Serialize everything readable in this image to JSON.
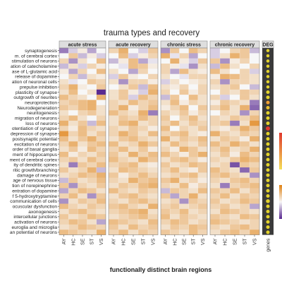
{
  "chart_data": {
    "type": "heatmap",
    "title": "trauma types and recovery",
    "xlabel": "functionally distinct brain regions",
    "panels": [
      "acute stress",
      "acute recovery",
      "chronic stress",
      "chronic recovery",
      "DEG"
    ],
    "region_labels": [
      "AY",
      "HC",
      "SE",
      "ST",
      "VS"
    ],
    "deg_xlabel": "genes",
    "row_labels": [
      "synaptogenesis",
      "m. of cerebral cortex",
      "stimulation of neurons",
      "ation of catecholamine",
      "ase of L-glutamic acid",
      "release of dopamine",
      "ation of neuronal cells",
      "prepulse inhibition",
      "plasticity of synapse",
      "outgrowth of neurites",
      "neuroprotection",
      "Neurodegeneration",
      "neuritogenesis",
      "migration of neurons",
      "loss of neurons",
      "otentiation of synapse",
      "depression of synapse",
      "postsynaptic potential",
      "excitation of neurons",
      "order of basal ganglia",
      "ment of hippocampus",
      "ment of cerebral cortex",
      "ity of dendritic spines",
      "ritic growth/branching",
      "damage of neurons",
      "age of nervous tissue",
      "tion of norepinephrine",
      "entration of dopamine",
      "f 5-hydroxytryptamine",
      "communication of cells",
      "ocuscular dysfunction",
      "axonogenesis",
      "intercellular junctions",
      "activation of neurons",
      "euroglia and microglia",
      "an potential of neurons"
    ],
    "values": [
      [
        -0.6,
        -0.2,
        0.1,
        -0.4,
        0.0,
        0.3,
        0.6,
        0.0,
        -0.2,
        0.4,
        -0.5,
        0.4,
        0.0,
        0.5,
        0.3,
        -0.2,
        0.0,
        0.3,
        0.4,
        -0.3
      ],
      [
        0.0,
        0.4,
        -0.3,
        0.1,
        -0.2,
        0.0,
        0.5,
        -0.2,
        0.1,
        0.3,
        0.6,
        -0.1,
        0.3,
        -0.4,
        0.0,
        -0.2,
        0.2,
        0.6,
        0.4,
        0.0
      ],
      [
        0.3,
        -0.5,
        0.2,
        0.0,
        0.5,
        -0.3,
        0.1,
        0.5,
        -0.4,
        -0.1,
        0.0,
        0.6,
        0.1,
        -0.2,
        0.4,
        0.4,
        -0.5,
        0.1,
        0.3,
        0.0
      ],
      [
        -0.3,
        0.2,
        -0.2,
        0.3,
        0.1,
        0.0,
        -0.1,
        0.5,
        0.4,
        0.1,
        0.3,
        0.1,
        -0.1,
        -0.5,
        0.2,
        -0.3,
        0.5,
        0.2,
        0.0,
        0.3
      ],
      [
        0.1,
        -0.4,
        0.3,
        0.0,
        0.5,
        0.2,
        0.0,
        -0.4,
        0.3,
        0.0,
        0.3,
        -0.4,
        0.5,
        0.2,
        0.1,
        0.5,
        0.2,
        0.0,
        0.3,
        -0.2
      ],
      [
        0.0,
        0.3,
        -0.3,
        0.2,
        0.1,
        -0.2,
        0.4,
        0.1,
        0.0,
        0.3,
        0.2,
        0.0,
        -0.1,
        0.3,
        0.3,
        0.1,
        0.6,
        0.5,
        0.3,
        0.2
      ],
      [
        0.2,
        -0.1,
        0.0,
        0.4,
        0.3,
        0.2,
        -0.5,
        0.3,
        0.3,
        0.1,
        -0.2,
        0.2,
        0.0,
        0.1,
        0.2,
        0.3,
        -0.5,
        0.3,
        0.3,
        0.2
      ],
      [
        0.3,
        0.6,
        0.1,
        0.0,
        0.4,
        0.0,
        0.2,
        0.4,
        -0.3,
        0.5,
        0.2,
        0.1,
        0.3,
        0.0,
        0.3,
        0.2,
        0.3,
        0.4,
        0.0,
        -0.3
      ],
      [
        0.2,
        0.5,
        0.0,
        0.2,
        -1.0,
        0.2,
        0.4,
        0.1,
        -0.2,
        0.6,
        0.3,
        0.0,
        0.4,
        0.1,
        0.3,
        0.0,
        0.3,
        0.2,
        0.4,
        0.3
      ],
      [
        0.5,
        0.3,
        0.2,
        0.0,
        0.6,
        0.2,
        0.4,
        -0.2,
        0.5,
        0.3,
        -0.3,
        0.4,
        0.0,
        0.5,
        0.2,
        0.3,
        -0.2,
        0.0,
        0.4,
        0.2
      ],
      [
        0.3,
        0.4,
        0.5,
        0.6,
        0.0,
        0.3,
        0.2,
        0.5,
        0.3,
        0.4,
        0.2,
        0.5,
        0.1,
        0.3,
        0.2,
        0.1,
        0.4,
        0.3,
        0.2,
        -0.6
      ],
      [
        0.4,
        0.3,
        0.5,
        0.6,
        0.2,
        0.3,
        0.6,
        0.1,
        0.3,
        0.5,
        0.1,
        0.3,
        0.5,
        0.0,
        0.4,
        0.3,
        0.5,
        0.2,
        0.6,
        -0.7
      ],
      [
        0.2,
        0.0,
        0.3,
        0.4,
        0.2,
        0.5,
        0.3,
        0.2,
        0.6,
        -0.6,
        0.3,
        0.2,
        0.4,
        0.1,
        0.3,
        0.0,
        0.3,
        0.2,
        -0.5,
        0.3
      ],
      [
        0.3,
        0.5,
        0.2,
        0.0,
        0.3,
        0.2,
        0.4,
        0.3,
        0.5,
        0.3,
        0.4,
        0.0,
        0.3,
        0.5,
        0.2,
        0.3,
        0.2,
        0.4,
        0.3,
        0.5
      ],
      [
        0.6,
        0.2,
        0.4,
        -0.3,
        0.5,
        0.2,
        0.5,
        0.6,
        0.2,
        0.3,
        0.3,
        0.5,
        0.2,
        0.4,
        0.3,
        0.3,
        0.4,
        -0.6,
        0.2,
        0.8
      ],
      [
        0.3,
        0.1,
        0.5,
        0.3,
        0.2,
        0.3,
        0.2,
        0.4,
        0.3,
        0.1,
        0.5,
        0.0,
        0.3,
        0.2,
        0.4,
        0.2,
        0.1,
        0.3,
        0.6,
        0.4
      ],
      [
        0.8,
        0.3,
        0.5,
        0.2,
        0.4,
        0.3,
        0.6,
        0.4,
        0.2,
        0.5,
        0.3,
        0.4,
        0.5,
        0.2,
        0.1,
        0.6,
        0.3,
        0.2,
        0.4,
        0.3
      ],
      [
        0.5,
        0.2,
        0.4,
        0.6,
        0.3,
        0.2,
        0.4,
        0.5,
        0.3,
        0.2,
        0.6,
        0.2,
        0.4,
        0.3,
        0.5,
        0.2,
        0.4,
        0.3,
        0.1,
        0.6
      ],
      [
        0.3,
        0.6,
        0.2,
        0.4,
        0.5,
        0.5,
        0.2,
        0.3,
        0.6,
        0.4,
        0.2,
        0.5,
        0.3,
        0.2,
        0.4,
        0.5,
        0.3,
        0.6,
        0.4,
        0.2
      ],
      [
        0.2,
        0.4,
        0.1,
        0.5,
        0.3,
        0.3,
        0.5,
        0.2,
        0.4,
        0.1,
        0.3,
        0.1,
        0.6,
        0.4,
        0.2,
        0.3,
        0.5,
        0.2,
        0.3,
        0.6
      ],
      [
        0.5,
        0.1,
        0.3,
        0.2,
        0.4,
        0.4,
        0.2,
        0.6,
        0.3,
        0.5,
        0.5,
        0.3,
        0.1,
        0.4,
        0.6,
        0.2,
        0.4,
        0.1,
        0.5,
        0.3
      ],
      [
        0.3,
        0.4,
        0.2,
        0.5,
        0.3,
        0.5,
        0.3,
        0.2,
        0.6,
        0.4,
        0.2,
        0.4,
        0.5,
        0.3,
        0.1,
        0.3,
        0.2,
        0.4,
        0.6,
        0.5
      ],
      [
        0.2,
        -0.6,
        0.4,
        0.3,
        0.5,
        0.3,
        0.4,
        0.5,
        0.2,
        0.1,
        0.4,
        0.2,
        0.3,
        0.5,
        0.4,
        0.2,
        0.3,
        -0.8,
        0.4,
        0.3
      ],
      [
        0.4,
        0.2,
        0.3,
        0.6,
        -0.3,
        0.2,
        0.5,
        0.4,
        0.3,
        0.2,
        0.3,
        0.5,
        0.2,
        0.1,
        0.4,
        0.5,
        0.3,
        0.2,
        -0.7,
        0.4
      ],
      [
        0.2,
        0.3,
        0.5,
        0.4,
        0.6,
        0.4,
        0.1,
        0.3,
        0.5,
        0.3,
        0.2,
        0.3,
        0.4,
        0.5,
        0.2,
        0.4,
        0.5,
        0.3,
        0.2,
        -0.5
      ],
      [
        -0.3,
        0.4,
        0.2,
        0.3,
        0.5,
        0.3,
        0.2,
        0.6,
        0.4,
        0.5,
        0.4,
        0.6,
        0.2,
        0.3,
        0.1,
        0.3,
        0.2,
        0.4,
        0.5,
        0.3
      ],
      [
        0.4,
        -0.5,
        0.3,
        0.2,
        0.4,
        0.2,
        0.4,
        0.3,
        0.5,
        0.6,
        0.3,
        0.2,
        0.5,
        0.1,
        0.3,
        0.2,
        -0.6,
        0.3,
        0.4,
        0.5
      ],
      [
        -0.4,
        0.3,
        0.5,
        0.4,
        0.2,
        0.5,
        0.3,
        0.2,
        0.4,
        0.3,
        -0.3,
        0.4,
        0.3,
        0.2,
        0.5,
        0.4,
        0.3,
        0.5,
        0.2,
        0.4
      ],
      [
        0.3,
        0.5,
        0.2,
        -0.5,
        0.4,
        0.2,
        0.4,
        0.5,
        0.3,
        0.2,
        0.4,
        -0.4,
        0.3,
        0.6,
        0.2,
        0.3,
        0.5,
        0.2,
        0.4,
        0.3
      ],
      [
        -0.5,
        0.2,
        0.4,
        0.3,
        0.5,
        0.3,
        0.2,
        0.4,
        0.5,
        0.3,
        0.2,
        0.3,
        -0.5,
        0.4,
        0.3,
        0.4,
        0.2,
        0.3,
        0.5,
        0.4
      ],
      [
        0.5,
        0.3,
        0.2,
        0.4,
        0.3,
        0.4,
        0.5,
        0.3,
        0.2,
        0.6,
        0.3,
        0.4,
        0.2,
        0.3,
        0.4,
        0.3,
        0.4,
        0.2,
        0.3,
        -0.4
      ],
      [
        0.2,
        0.4,
        0.5,
        0.3,
        0.2,
        0.3,
        0.4,
        0.5,
        0.6,
        0.2,
        0.4,
        0.3,
        0.5,
        0.2,
        0.3,
        0.2,
        0.5,
        0.4,
        0.3,
        0.2
      ],
      [
        0.4,
        0.2,
        0.3,
        0.5,
        0.4,
        0.2,
        0.3,
        0.4,
        0.5,
        0.3,
        0.5,
        0.2,
        0.4,
        0.3,
        0.2,
        0.4,
        0.3,
        0.2,
        0.5,
        0.4
      ],
      [
        0.3,
        0.5,
        0.4,
        0.2,
        -0.4,
        0.5,
        0.4,
        0.3,
        0.2,
        0.5,
        0.3,
        0.5,
        0.4,
        0.2,
        0.3,
        0.5,
        0.4,
        0.3,
        0.2,
        0.3
      ],
      [
        0.2,
        0.3,
        0.5,
        0.4,
        0.3,
        0.4,
        0.2,
        0.5,
        0.3,
        0.4,
        0.2,
        0.4,
        0.3,
        0.5,
        0.4,
        0.3,
        0.2,
        0.4,
        0.5,
        0.3
      ],
      [
        0.5,
        0.4,
        0.3,
        0.2,
        0.6,
        0.3,
        0.5,
        0.2,
        0.4,
        0.3,
        0.4,
        0.3,
        0.2,
        0.5,
        0.3,
        0.2,
        0.4,
        0.5,
        0.3,
        0.6
      ]
    ],
    "deg_markers": [
      {
        "color": "#e3d32b",
        "size": 0.4
      },
      {
        "color": "#e3d32b",
        "size": 0.4
      },
      {
        "color": "#e3d32b",
        "size": 0.4
      },
      {
        "color": "#e3d32b",
        "size": 0.4
      },
      {
        "color": "#e3d32b",
        "size": 0.4
      },
      {
        "color": "#e3d32b",
        "size": 0.4
      },
      {
        "color": "#e3d32b",
        "size": 0.4
      },
      {
        "color": "#e3d32b",
        "size": 0.4
      },
      {
        "color": "#e3d32b",
        "size": 0.5
      },
      {
        "color": "#e3d32b",
        "size": 0.5
      },
      {
        "color": "#f0a030",
        "size": 0.5
      },
      {
        "color": "#e8c02c",
        "size": 0.5
      },
      {
        "color": "#e3d32b",
        "size": 0.5
      },
      {
        "color": "#e3d32b",
        "size": 0.5
      },
      {
        "color": "#e3d32b",
        "size": 0.5
      },
      {
        "color": "#e03a2f",
        "size": 0.7
      },
      {
        "color": "#e3d32b",
        "size": 0.5
      },
      {
        "color": "#e3d32b",
        "size": 0.5
      },
      {
        "color": "#e3d32b",
        "size": 0.5
      },
      {
        "color": "#e3d32b",
        "size": 0.5
      },
      {
        "color": "#e3d32b",
        "size": 0.5
      },
      {
        "color": "#e3d32b",
        "size": 0.5
      },
      {
        "color": "#e3d32b",
        "size": 0.5
      },
      {
        "color": "#e3d32b",
        "size": 0.5
      },
      {
        "color": "#e3d32b",
        "size": 0.5
      },
      {
        "color": "#e3d32b",
        "size": 0.5
      },
      {
        "color": "#e3d32b",
        "size": 0.5
      },
      {
        "color": "#e3d32b",
        "size": 0.5
      },
      {
        "color": "#e3d32b",
        "size": 0.5
      },
      {
        "color": "#e3d32b",
        "size": 0.6
      },
      {
        "color": "#e3d32b",
        "size": 0.5
      },
      {
        "color": "#e3d32b",
        "size": 0.5
      },
      {
        "color": "#e3d32b",
        "size": 0.5
      },
      {
        "color": "#e3d32b",
        "size": 0.5
      },
      {
        "color": "#e3d32b",
        "size": 0.5
      },
      {
        "color": "#e3d32b",
        "size": 0.5
      }
    ],
    "value_range": [
      -1,
      1
    ],
    "colors": {
      "low": "#5a2a91",
      "mid": "#f7f7f7",
      "high": "#e08214",
      "deg_bg": "#3a3a3a",
      "strip_bg": "#dedede",
      "legend_red": "#e03a2f",
      "legend_yellow": "#f5e05a"
    }
  }
}
